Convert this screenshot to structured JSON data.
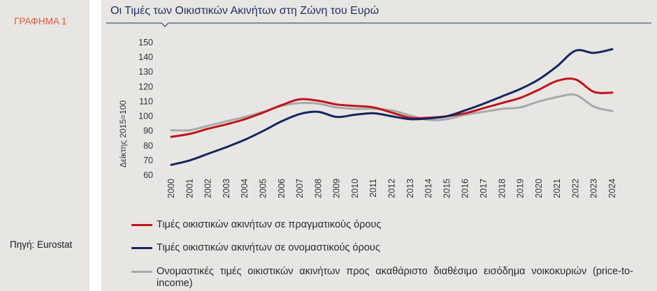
{
  "figure_label": "ΓΡΑΦΗΜΑ 1",
  "source": "Πηγή: Eurostat",
  "theme": {
    "background": "#e8e6e3",
    "accent": "#e05a3b",
    "title_color": "#1d2f5f"
  },
  "chart_data": {
    "type": "line",
    "title": "Οι Τιμές των Οικιστικών Ακινήτων στη Ζώνη του Ευρώ",
    "ylabel": "Δείκτης 2015=100",
    "x": [
      "2000",
      "2001",
      "2002",
      "2003",
      "2004",
      "2005",
      "2006",
      "2007",
      "2008",
      "2009",
      "2010",
      "2011",
      "2012",
      "2013",
      "2014",
      "2015",
      "2016",
      "2017",
      "2018",
      "2019",
      "2020",
      "2021",
      "2022",
      "2023",
      "2024"
    ],
    "ylim": [
      60,
      150
    ],
    "yticks": [
      60,
      70,
      80,
      90,
      100,
      110,
      120,
      130,
      140,
      150
    ],
    "grid": false,
    "legend_position": "bottom",
    "series": [
      {
        "name": "Τιμές οικιστικών ακινήτων σε πραγματικούς όρους",
        "color": "#c0141c",
        "values": [
          86,
          88,
          91.5,
          94.5,
          98,
          102.5,
          107.5,
          111.5,
          110.5,
          108,
          107,
          106,
          102.5,
          99,
          99,
          100,
          102,
          105.5,
          109,
          112.5,
          118,
          124,
          125,
          116.5,
          116
        ]
      },
      {
        "name": "Τιμές οικιστικών ακινήτων σε ονομαστικούς όρους",
        "color": "#13265e",
        "values": [
          67,
          70,
          74.5,
          79,
          84,
          90,
          96.5,
          101.5,
          103,
          99.5,
          101,
          102,
          100,
          98,
          98.5,
          100,
          104,
          108.5,
          113.5,
          118.5,
          125,
          134,
          144.5,
          143,
          145.5
        ]
      },
      {
        "name": "Ονομαστικές τιμές οικιστικών ακινήτων προς ακαθάριστο διαθέσιμο εισόδημα νοικοκυριών (price-to-income)",
        "color": "#a9a9a9",
        "values": [
          90.5,
          90.5,
          93.5,
          96.5,
          99.5,
          103,
          107,
          109,
          108.5,
          106,
          105,
          105,
          104,
          100.5,
          97.5,
          98,
          101,
          103,
          105,
          106,
          110,
          113,
          114.5,
          106.5,
          103.5
        ]
      }
    ]
  }
}
